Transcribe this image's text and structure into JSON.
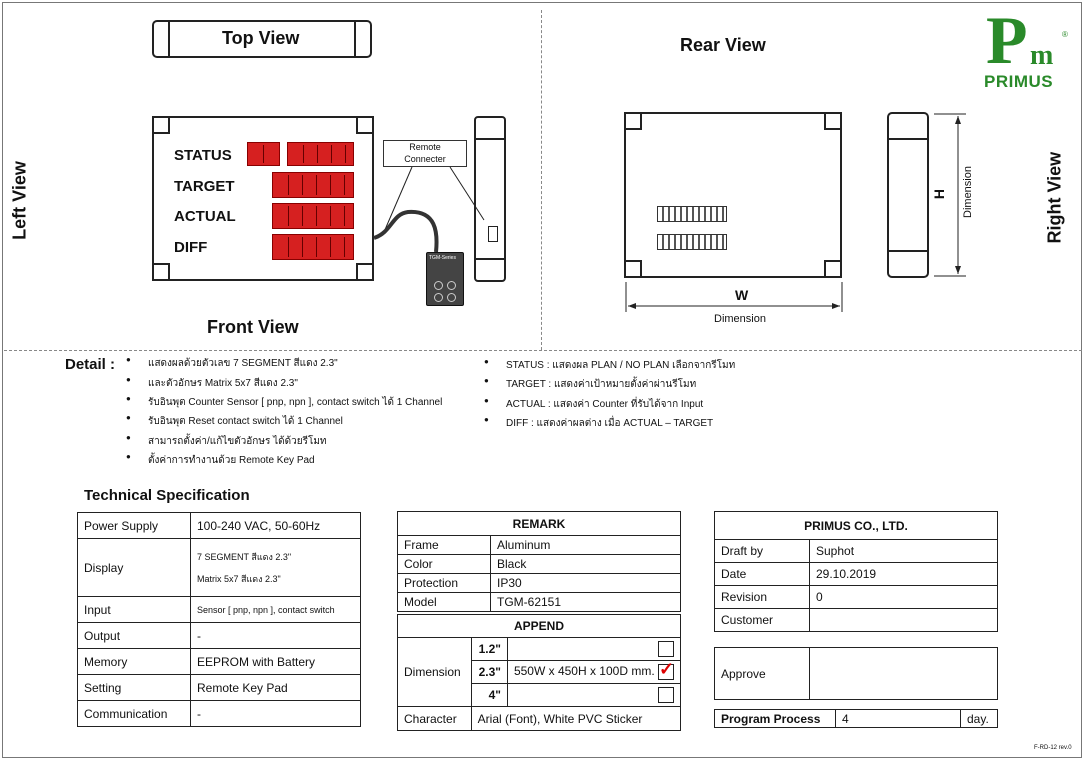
{
  "views": {
    "top": "Top View",
    "rear": "Rear View",
    "left": "Left View",
    "right": "Right View",
    "front": "Front View"
  },
  "logo": {
    "brand": "PRIMUS",
    "symbol_p": "P",
    "symbol_m": "m",
    "reg": "®"
  },
  "front_panel": {
    "rows": [
      "STATUS",
      "TARGET",
      "ACTUAL",
      "DIFF"
    ],
    "remote_label_1": "Remote",
    "remote_label_2": "Connecter",
    "pad_label": "TGM-Series"
  },
  "rear_dims": {
    "w": "W",
    "h": "H",
    "w_caption": "Dimension",
    "h_caption": "Dimension"
  },
  "detail": {
    "title": "Detail :",
    "left": [
      "แสดงผลด้วยตัวเลข 7 SEGMENT สีแดง 2.3\"",
      "และตัวอักษร Matrix 5x7 สีแดง 2.3\"",
      "รับอินพุต Counter Sensor [ pnp, npn ], contact switch ได้ 1 Channel",
      "รับอินพุต Reset contact switch ได้ 1 Channel",
      "สามารถตั้งค่า/แก้ไขตัวอักษร ได้ด้วยรีโมท",
      "ตั้งค่าการทำงานด้วย Remote Key Pad"
    ],
    "right": [
      "STATUS : แสดงผล PLAN / NO PLAN เลือกจากรีโมท",
      "TARGET : แสดงค่าเป้าหมายตั้งค่าผ่านรีโมท",
      "ACTUAL : แสดงค่า Counter ที่รับได้จาก Input",
      "DIFF : แสดงค่าผลต่าง เมื่อ ACTUAL – TARGET"
    ]
  },
  "tech_spec": {
    "title": "Technical Specification",
    "power_supply_label": "Power Supply",
    "power_supply_value": "100-240 VAC, 50-60Hz",
    "display_label": "Display",
    "display_value_1": "7 SEGMENT สีแดง 2.3\"",
    "display_value_2": "Matrix 5x7 สีแดง 2.3\"",
    "input_label": "Input",
    "input_value": "Sensor [ pnp, npn ], contact switch",
    "output_label": "Output",
    "output_value": "-",
    "memory_label": "Memory",
    "memory_value": "EEPROM with Battery",
    "setting_label": "Setting",
    "setting_value": "Remote Key Pad",
    "communication_label": "Communication",
    "communication_value": "-"
  },
  "remark": {
    "title": "REMARK",
    "frame_label": "Frame",
    "frame_value": "Aluminum",
    "color_label": "Color",
    "color_value": "Black",
    "protection_label": "Protection",
    "protection_value": "IP30",
    "model_label": "Model",
    "model_value": "TGM-62151"
  },
  "append": {
    "title": "APPEND",
    "dimension_label": "Dimension",
    "size_1": "1.2\"",
    "size_2": "2.3\"",
    "size_3": "4\"",
    "size_2_value": "550W x 450H x 100D mm.",
    "character_label": "Character",
    "character_value": "Arial (Font), White PVC Sticker"
  },
  "company": {
    "title": "PRIMUS CO., LTD.",
    "draft_label": "Draft by",
    "draft_value": "Suphot",
    "date_label": "Date",
    "date_value": "29.10.2019",
    "revision_label": "Revision",
    "revision_value": "0",
    "customer_label": "Customer",
    "customer_value": "",
    "approve_label": "Approve",
    "process_label": "Program Process",
    "process_value": "4",
    "process_unit": "day."
  },
  "footer": {
    "code": "F-RD-12 rev.0"
  }
}
